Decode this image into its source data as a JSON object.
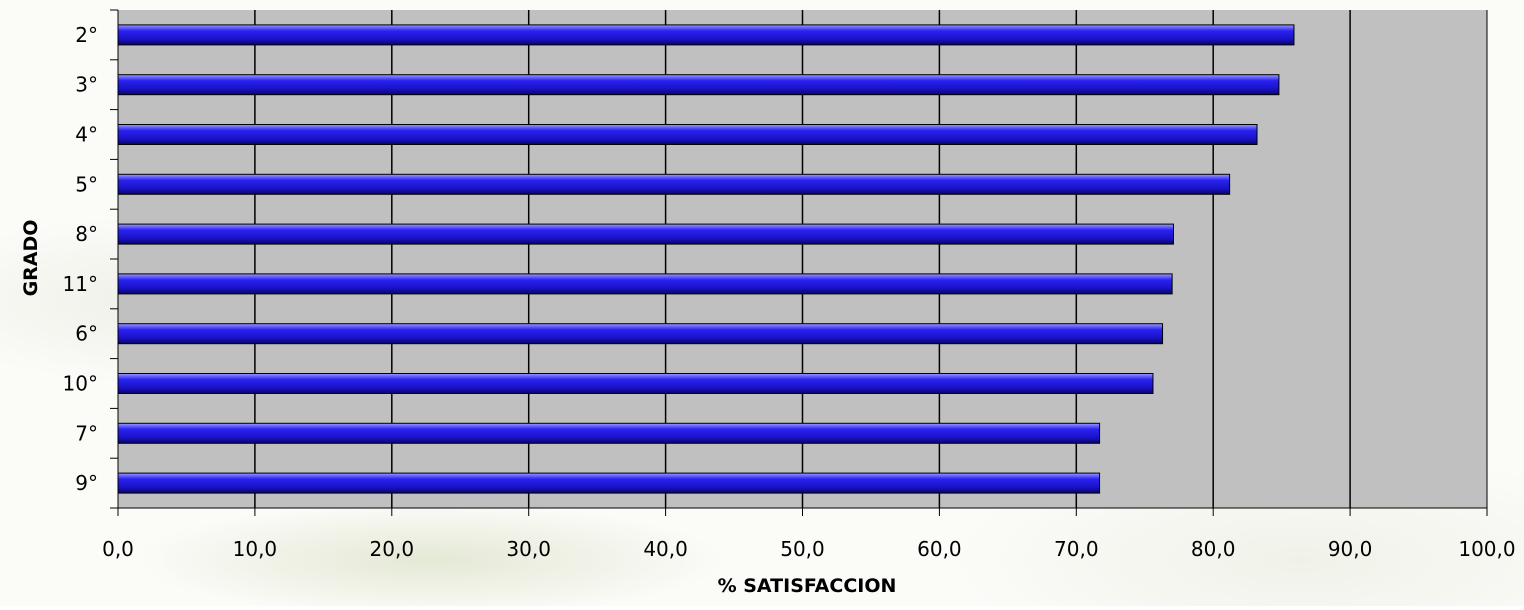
{
  "chart_data": {
    "type": "bar",
    "orientation": "horizontal",
    "categories": [
      "2°",
      "3°",
      "4°",
      "5°",
      "8°",
      "11°",
      "6°",
      "10°",
      "7°",
      "9°"
    ],
    "series": [
      {
        "values": [
          85.9,
          84.8,
          83.2,
          81.2,
          77.1,
          77.0,
          76.3,
          75.6,
          71.7,
          71.7
        ],
        "color": "#1a12e0"
      }
    ],
    "xlabel": "% SATISFACCION",
    "ylabel": "GRADO",
    "xlim": [
      0,
      100
    ],
    "xticks": [
      0,
      10,
      20,
      30,
      40,
      50,
      60,
      70,
      80,
      90,
      100
    ],
    "xtick_labels": [
      "0,0",
      "10,0",
      "20,0",
      "30,0",
      "40,0",
      "50,0",
      "60,0",
      "70,0",
      "80,0",
      "90,0",
      "100,0"
    ],
    "plot_background": "#c0c0c0",
    "grid": "vertical",
    "legend": "none"
  }
}
